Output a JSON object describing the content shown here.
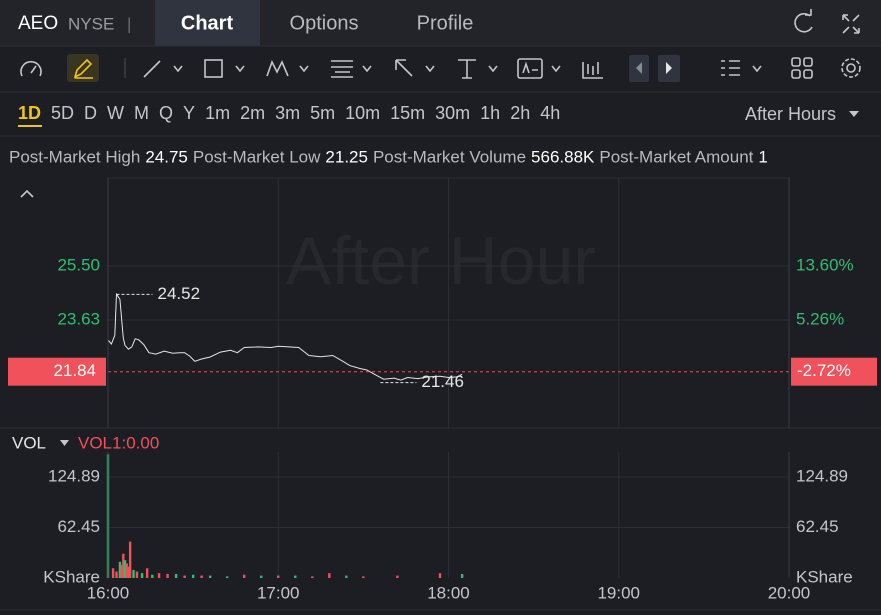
{
  "header": {
    "symbol": "AEO",
    "exchange": "NYSE",
    "separator": "|",
    "tabs": [
      "Chart",
      "Options",
      "Profile"
    ]
  },
  "periods": [
    "1D",
    "5D",
    "D",
    "W",
    "M",
    "Q",
    "Y",
    "1m",
    "2m",
    "3m",
    "5m",
    "10m",
    "15m",
    "30m",
    "1h",
    "2h",
    "4h"
  ],
  "session": "After Hours",
  "stats": [
    {
      "label": "Post-Market High",
      "value": "24.75"
    },
    {
      "label": "Post-Market Low",
      "value": "21.25"
    },
    {
      "label": "Post-Market Volume",
      "value": "566.88K"
    },
    {
      "label": "Post-Market Amount",
      "value": "1"
    }
  ],
  "chart_data": [
    {
      "type": "line",
      "watermark": "After Hour",
      "color": "#e6e6e6",
      "grid": true,
      "x": [
        16.0,
        16.02,
        16.04,
        16.05,
        16.07,
        16.09,
        16.1,
        16.12,
        16.14,
        16.16,
        16.18,
        16.21,
        16.24,
        16.28,
        16.33,
        16.38,
        16.42,
        16.45,
        16.48,
        16.51,
        16.55,
        16.6,
        16.66,
        16.72,
        16.76,
        16.8,
        16.88,
        16.96,
        17.0,
        17.06,
        17.12,
        17.18,
        17.25,
        17.32,
        17.38,
        17.42,
        17.48,
        17.52,
        17.58,
        17.62,
        17.68,
        17.72,
        17.76,
        17.82,
        17.88,
        17.95,
        18.0,
        18.05,
        18.08
      ],
      "values": [
        22.94,
        22.8,
        23.1,
        24.52,
        24.35,
        23.0,
        22.75,
        22.62,
        22.7,
        22.98,
        22.95,
        22.78,
        22.5,
        22.45,
        22.55,
        22.48,
        22.5,
        22.5,
        22.38,
        22.2,
        22.28,
        22.35,
        22.52,
        22.58,
        22.5,
        22.68,
        22.7,
        22.68,
        22.72,
        22.7,
        22.68,
        22.4,
        22.36,
        22.4,
        22.2,
        22.05,
        21.95,
        21.9,
        21.7,
        21.58,
        21.62,
        21.55,
        21.64,
        21.6,
        21.66,
        21.68,
        21.64,
        21.66,
        21.75
      ],
      "xlim": [
        16,
        20
      ],
      "ylim": [
        19.89,
        28.55
      ],
      "yticks": [
        {
          "value": 25.5,
          "label": "25.50"
        },
        {
          "value": 23.63,
          "label": "23.63"
        }
      ],
      "y2lim": [
        -11.4,
        27.17
      ],
      "y2ticks": [
        {
          "value": 13.6,
          "label": "13.60%"
        },
        {
          "value": 5.26,
          "label": "5.26%"
        }
      ],
      "last_price": 21.84,
      "last_change": {
        "value": -2.72,
        "label": "-2.72%"
      },
      "high": {
        "x": 16.05,
        "value": 24.52
      },
      "low": {
        "x": 17.6,
        "value": 21.46
      }
    },
    {
      "type": "bar",
      "title": "VOL",
      "subtitle": "VOL1:0.00",
      "unit": "KShare",
      "x": [
        16.0,
        16.03,
        16.05,
        16.07,
        16.08,
        16.09,
        16.1,
        16.11,
        16.12,
        16.13,
        16.15,
        16.17,
        16.2,
        16.23,
        16.26,
        16.3,
        16.35,
        16.4,
        16.45,
        16.5,
        16.55,
        16.6,
        16.7,
        16.8,
        16.9,
        17.0,
        17.1,
        17.2,
        17.3,
        17.4,
        17.5,
        17.7,
        17.95,
        18.08
      ],
      "values": [
        153,
        12,
        8,
        20,
        16,
        30,
        22,
        18,
        14,
        45,
        10,
        8,
        6,
        12,
        4,
        6,
        5,
        5,
        3,
        4,
        3,
        3,
        2,
        4,
        3,
        3,
        3,
        2,
        6,
        3,
        2,
        3,
        6,
        5
      ],
      "colors": [
        "#2fbf71",
        "#f0515a",
        "#f0515a",
        "#2fbf71",
        "#f0515a",
        "#f0515a",
        "#2fbf71",
        "#f0515a",
        "#f0515a",
        "#f0515a",
        "#2fbf71",
        "#f0515a",
        "#2fbf71",
        "#f0515a",
        "#2fbf71",
        "#f0515a",
        "#f0515a",
        "#2fbf71",
        "#f0515a",
        "#2fbf71",
        "#f0515a",
        "#2fbf71",
        "#2fbf71",
        "#f0515a",
        "#2fbf71",
        "#f0515a",
        "#2fbf71",
        "#f0515a",
        "#f0515a",
        "#2fbf71",
        "#f0515a",
        "#f0515a",
        "#f0515a",
        "#2fbf71"
      ],
      "xlim": [
        16,
        20
      ],
      "xticks": [
        {
          "value": 16,
          "label": "16:00"
        },
        {
          "value": 17,
          "label": "17:00"
        },
        {
          "value": 18,
          "label": "18:00"
        },
        {
          "value": 19,
          "label": "19:00"
        },
        {
          "value": 20,
          "label": "20:00"
        }
      ],
      "ylim": [
        0,
        155.8
      ],
      "yticks": [
        124.89,
        62.45
      ]
    }
  ]
}
